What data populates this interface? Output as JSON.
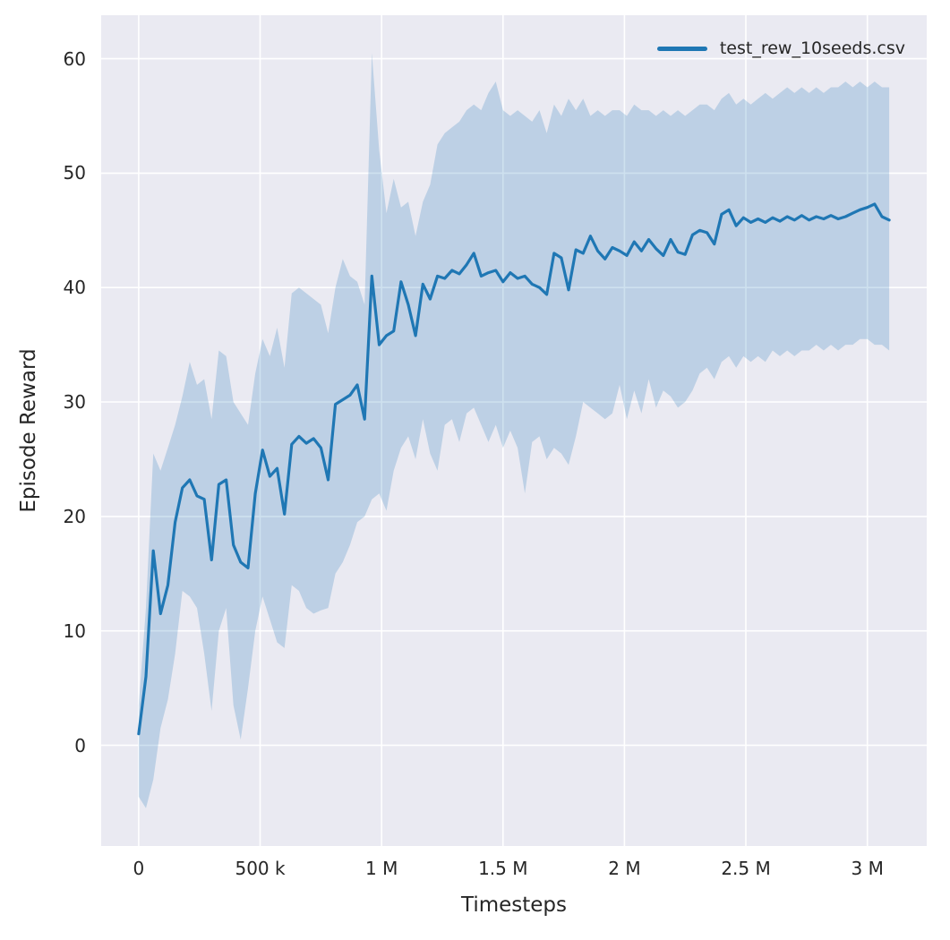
{
  "chart_data": {
    "type": "line",
    "title": "",
    "xlabel": "Timesteps",
    "ylabel": "Episode Reward",
    "legend": [
      {
        "label": "test_rew_10seeds.csv",
        "color": "#1f77b4"
      }
    ],
    "legend_position": "upper right",
    "grid": true,
    "background": "#eaeaf2",
    "grid_color": "#ffffff",
    "band_opacity": 0.22,
    "xlim": [
      -154500,
      3244500
    ],
    "ylim": [
      -8.8,
      63.8
    ],
    "x_multiplier": 1000,
    "x_ticks": [
      {
        "value": 0,
        "label": "0"
      },
      {
        "value": 500000,
        "label": "500 k"
      },
      {
        "value": 1000000,
        "label": "1 M"
      },
      {
        "value": 1500000,
        "label": "1.5 M"
      },
      {
        "value": 2000000,
        "label": "2 M"
      },
      {
        "value": 2500000,
        "label": "2.5 M"
      },
      {
        "value": 3000000,
        "label": "3 M"
      }
    ],
    "y_ticks": [
      {
        "value": 0,
        "label": "0"
      },
      {
        "value": 10,
        "label": "10"
      },
      {
        "value": 20,
        "label": "20"
      },
      {
        "value": 30,
        "label": "30"
      },
      {
        "value": 40,
        "label": "40"
      },
      {
        "value": 50,
        "label": "50"
      },
      {
        "value": 60,
        "label": "60"
      }
    ],
    "series": [
      {
        "name": "test_rew_10seeds.csv",
        "color": "#1f77b4",
        "x_thousands": [
          0,
          30,
          60,
          90,
          120,
          150,
          180,
          210,
          240,
          270,
          300,
          330,
          360,
          390,
          420,
          450,
          480,
          510,
          540,
          570,
          600,
          630,
          660,
          690,
          720,
          750,
          780,
          810,
          840,
          870,
          900,
          930,
          960,
          990,
          1020,
          1050,
          1080,
          1110,
          1140,
          1170,
          1200,
          1230,
          1260,
          1290,
          1320,
          1350,
          1380,
          1410,
          1440,
          1470,
          1500,
          1530,
          1560,
          1590,
          1620,
          1650,
          1680,
          1710,
          1740,
          1770,
          1800,
          1830,
          1860,
          1890,
          1920,
          1950,
          1980,
          2010,
          2040,
          2070,
          2100,
          2130,
          2160,
          2190,
          2220,
          2250,
          2280,
          2310,
          2340,
          2370,
          2400,
          2430,
          2460,
          2490,
          2520,
          2550,
          2580,
          2610,
          2640,
          2670,
          2700,
          2730,
          2760,
          2790,
          2820,
          2850,
          2880,
          2910,
          2940,
          2970,
          3000,
          3030,
          3060,
          3090
        ],
        "mean": [
          1.0,
          6.0,
          17.0,
          11.5,
          14.0,
          19.5,
          22.5,
          23.2,
          21.8,
          21.5,
          16.2,
          22.8,
          23.2,
          17.5,
          16.0,
          15.5,
          22.0,
          25.8,
          23.5,
          24.2,
          20.2,
          26.3,
          27.0,
          26.4,
          26.8,
          26.0,
          23.2,
          29.8,
          30.2,
          30.6,
          31.5,
          28.5,
          41.0,
          35.0,
          35.8,
          36.2,
          40.5,
          38.5,
          35.8,
          40.3,
          39.0,
          41.0,
          40.8,
          41.5,
          41.2,
          42.0,
          43.0,
          41.0,
          41.3,
          41.5,
          40.5,
          41.3,
          40.8,
          41.0,
          40.3,
          40.0,
          39.4,
          43.0,
          42.6,
          39.8,
          43.3,
          43.0,
          44.5,
          43.2,
          42.5,
          43.5,
          43.2,
          42.8,
          44.0,
          43.2,
          44.2,
          43.4,
          42.8,
          44.2,
          43.1,
          42.9,
          44.6,
          45.0,
          44.8,
          43.8,
          46.4,
          46.8,
          45.4,
          46.1,
          45.7,
          46.0,
          45.7,
          46.1,
          45.8,
          46.2,
          45.9,
          46.3,
          45.9,
          46.2,
          46.0,
          46.3,
          46.0,
          46.2,
          46.5,
          46.8,
          47.0,
          47.3,
          46.2,
          45.9
        ],
        "lower": [
          -4.5,
          -5.5,
          -3.0,
          1.5,
          4.0,
          8.0,
          13.5,
          13.0,
          12.0,
          8.0,
          3.0,
          10.0,
          12.0,
          3.5,
          0.5,
          5.0,
          10.0,
          13.0,
          11.0,
          9.0,
          8.5,
          14.0,
          13.5,
          12.0,
          11.5,
          11.8,
          12.0,
          15.0,
          16.0,
          17.5,
          19.5,
          20.0,
          21.5,
          22.0,
          20.5,
          24.0,
          26.0,
          27.0,
          25.0,
          28.5,
          25.5,
          24.0,
          28.0,
          28.5,
          26.5,
          29.0,
          29.5,
          28.0,
          26.5,
          28.0,
          26.0,
          27.5,
          26.0,
          22.0,
          26.5,
          27.0,
          25.0,
          26.0,
          25.5,
          24.5,
          27.0,
          30.0,
          29.5,
          29.0,
          28.5,
          29.0,
          31.5,
          28.5,
          31.0,
          29.0,
          32.0,
          29.5,
          31.0,
          30.5,
          29.5,
          30.0,
          31.0,
          32.5,
          33.0,
          32.0,
          33.5,
          34.0,
          33.0,
          34.0,
          33.5,
          34.0,
          33.5,
          34.5,
          34.0,
          34.5,
          34.0,
          34.5,
          34.5,
          35.0,
          34.5,
          35.0,
          34.5,
          35.0,
          35.0,
          35.5,
          35.5,
          35.0,
          35.0,
          34.5
        ],
        "upper": [
          3.5,
          12.0,
          25.5,
          24.0,
          26.0,
          28.0,
          30.5,
          33.5,
          31.5,
          32.0,
          28.5,
          34.5,
          34.0,
          30.0,
          29.0,
          28.0,
          32.5,
          35.5,
          34.0,
          36.5,
          33.0,
          39.5,
          40.0,
          39.5,
          39.0,
          38.5,
          36.0,
          40.0,
          42.5,
          41.0,
          40.5,
          38.5,
          60.5,
          52.0,
          46.5,
          49.5,
          47.0,
          47.5,
          44.5,
          47.5,
          49.0,
          52.5,
          53.5,
          54.0,
          54.5,
          55.5,
          56.0,
          55.5,
          57.0,
          58.0,
          55.5,
          55.0,
          55.5,
          55.0,
          54.5,
          55.5,
          53.5,
          56.0,
          55.0,
          56.5,
          55.5,
          56.5,
          55.0,
          55.5,
          55.0,
          55.5,
          55.5,
          55.0,
          56.0,
          55.5,
          55.5,
          55.0,
          55.5,
          55.0,
          55.5,
          55.0,
          55.5,
          56.0,
          56.0,
          55.5,
          56.5,
          57.0,
          56.0,
          56.5,
          56.0,
          56.5,
          57.0,
          56.5,
          57.0,
          57.5,
          57.0,
          57.5,
          57.0,
          57.5,
          57.0,
          57.5,
          57.5,
          58.0,
          57.5,
          58.0,
          57.5,
          58.0,
          57.5,
          57.5
        ]
      }
    ]
  }
}
